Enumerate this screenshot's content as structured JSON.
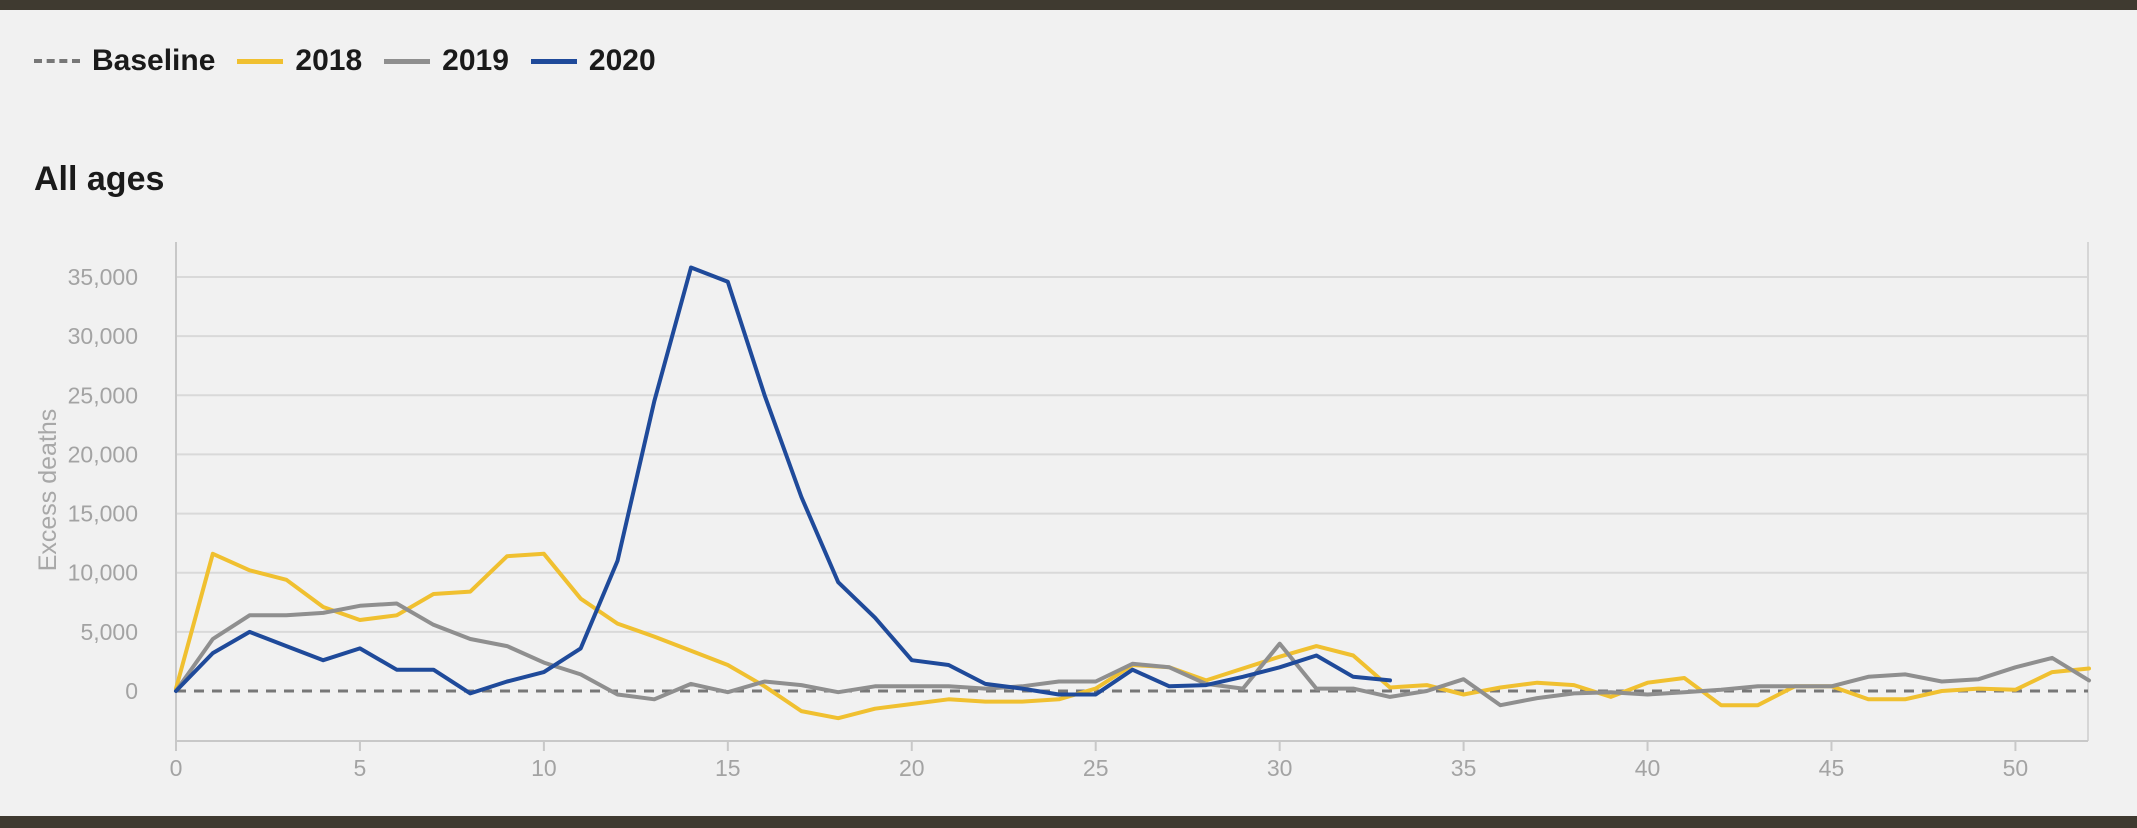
{
  "legend": {
    "items": [
      {
        "label": "Baseline",
        "color": "#777777",
        "style": "dashed"
      },
      {
        "label": "2018",
        "color": "#f0c030",
        "style": "solid"
      },
      {
        "label": "2019",
        "color": "#8f8f8f",
        "style": "solid"
      },
      {
        "label": "2020",
        "color": "#1f4a9a",
        "style": "solid"
      }
    ]
  },
  "chart_data": {
    "type": "line",
    "title": "All ages",
    "xlabel": "",
    "ylabel": "Excess deaths",
    "xlim": [
      0,
      52
    ],
    "ylim": [
      -4200,
      38000
    ],
    "grid": true,
    "legend_position": "top-left",
    "xticks": [
      0,
      5,
      10,
      15,
      20,
      25,
      30,
      35,
      40,
      45,
      50
    ],
    "xtick_labels": [
      "0",
      "5",
      "10",
      "15",
      "20",
      "25",
      "30",
      "35",
      "40",
      "45",
      "50"
    ],
    "yticks": [
      0,
      5000,
      10000,
      15000,
      20000,
      25000,
      30000,
      35000
    ],
    "ytick_labels": [
      "0",
      "5,000",
      "10,000",
      "15,000",
      "20,000",
      "25,000",
      "30,000",
      "35,000"
    ],
    "baseline": 0,
    "series": [
      {
        "name": "2018",
        "color": "#f0c030",
        "x": [
          0,
          1,
          2,
          3,
          4,
          5,
          6,
          7,
          8,
          9,
          10,
          11,
          12,
          13,
          14,
          15,
          16,
          17,
          18,
          19,
          20,
          21,
          22,
          23,
          24,
          25,
          26,
          27,
          28,
          29,
          30,
          31,
          32,
          33,
          34,
          35,
          36,
          37,
          38,
          39,
          40,
          41,
          42,
          43,
          44,
          45,
          46,
          47,
          48,
          49,
          50,
          51,
          52
        ],
        "y": [
          200,
          11600,
          10200,
          9400,
          7100,
          6000,
          6400,
          8200,
          8400,
          11400,
          11600,
          7800,
          5700,
          4600,
          3400,
          2200,
          400,
          -1700,
          -2300,
          -1500,
          -1100,
          -700,
          -900,
          -900,
          -700,
          200,
          2200,
          2000,
          900,
          1900,
          2900,
          3800,
          3000,
          300,
          500,
          -300,
          300,
          700,
          500,
          -500,
          700,
          1100,
          -1200,
          -1200,
          400,
          400,
          -700,
          -700,
          0,
          200,
          100,
          1600,
          1900
        ]
      },
      {
        "name": "2019",
        "color": "#8f8f8f",
        "x": [
          0,
          1,
          2,
          3,
          4,
          5,
          6,
          7,
          8,
          9,
          10,
          11,
          12,
          13,
          14,
          15,
          16,
          17,
          18,
          19,
          20,
          21,
          22,
          23,
          24,
          25,
          26,
          27,
          28,
          29,
          30,
          31,
          32,
          33,
          34,
          35,
          36,
          37,
          38,
          39,
          40,
          41,
          42,
          43,
          44,
          45,
          46,
          47,
          48,
          49,
          50,
          51,
          52
        ],
        "y": [
          0,
          4400,
          6400,
          6400,
          6600,
          7200,
          7400,
          5600,
          4400,
          3800,
          2400,
          1400,
          -300,
          -700,
          600,
          -100,
          800,
          500,
          -100,
          400,
          400,
          400,
          200,
          400,
          800,
          800,
          2300,
          2000,
          600,
          200,
          4000,
          200,
          200,
          -500,
          0,
          1000,
          -1200,
          -600,
          -200,
          -100,
          -300,
          -100,
          100,
          400,
          400,
          400,
          1200,
          1400,
          800,
          1000,
          2000,
          2800,
          900
        ]
      },
      {
        "name": "2020",
        "color": "#1f4a9a",
        "x": [
          0,
          1,
          2,
          3,
          4,
          5,
          6,
          7,
          8,
          9,
          10,
          11,
          12,
          13,
          14,
          15,
          16,
          17,
          18,
          19,
          20,
          21,
          22,
          23,
          24,
          25,
          26,
          27,
          28,
          29,
          30,
          31,
          32,
          33
        ],
        "y": [
          0,
          3200,
          5000,
          3800,
          2600,
          3600,
          1800,
          1800,
          -200,
          800,
          1600,
          3600,
          11000,
          24500,
          35800,
          34600,
          25000,
          16400,
          9200,
          6200,
          2600,
          2200,
          600,
          200,
          -300,
          -300,
          1800,
          400,
          500,
          1200,
          2000,
          3000,
          1200,
          900
        ]
      }
    ]
  }
}
